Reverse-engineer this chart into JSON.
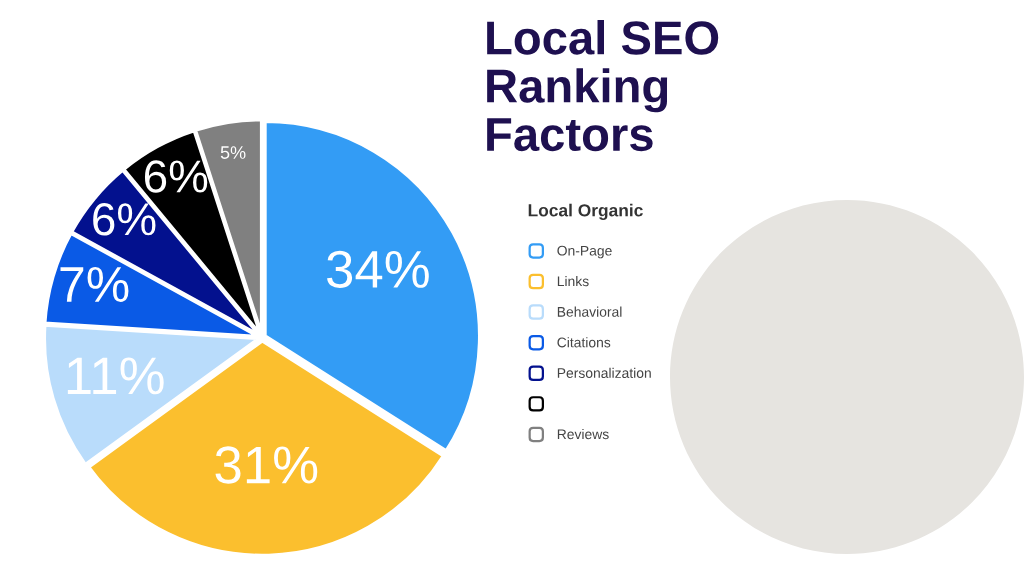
{
  "chart_data": {
    "type": "pie",
    "title": "Local SEO Ranking Factors",
    "legend_title": "Local Organic",
    "categories": [
      "On-Page",
      "Links",
      "Behavioral",
      "Citations",
      "Personalization",
      null,
      "Reviews"
    ],
    "values": [
      34,
      31,
      11,
      7,
      6,
      6,
      5
    ],
    "colors": [
      "#339cf5",
      "#fbbf2e",
      "#b9dcfb",
      "#0a5ae6",
      "#03118e",
      "#000000",
      "#808080"
    ],
    "value_labels": [
      "34%",
      "31%",
      "11%",
      "7%",
      "6%",
      "6%",
      "5%"
    ],
    "legend": "right"
  }
}
